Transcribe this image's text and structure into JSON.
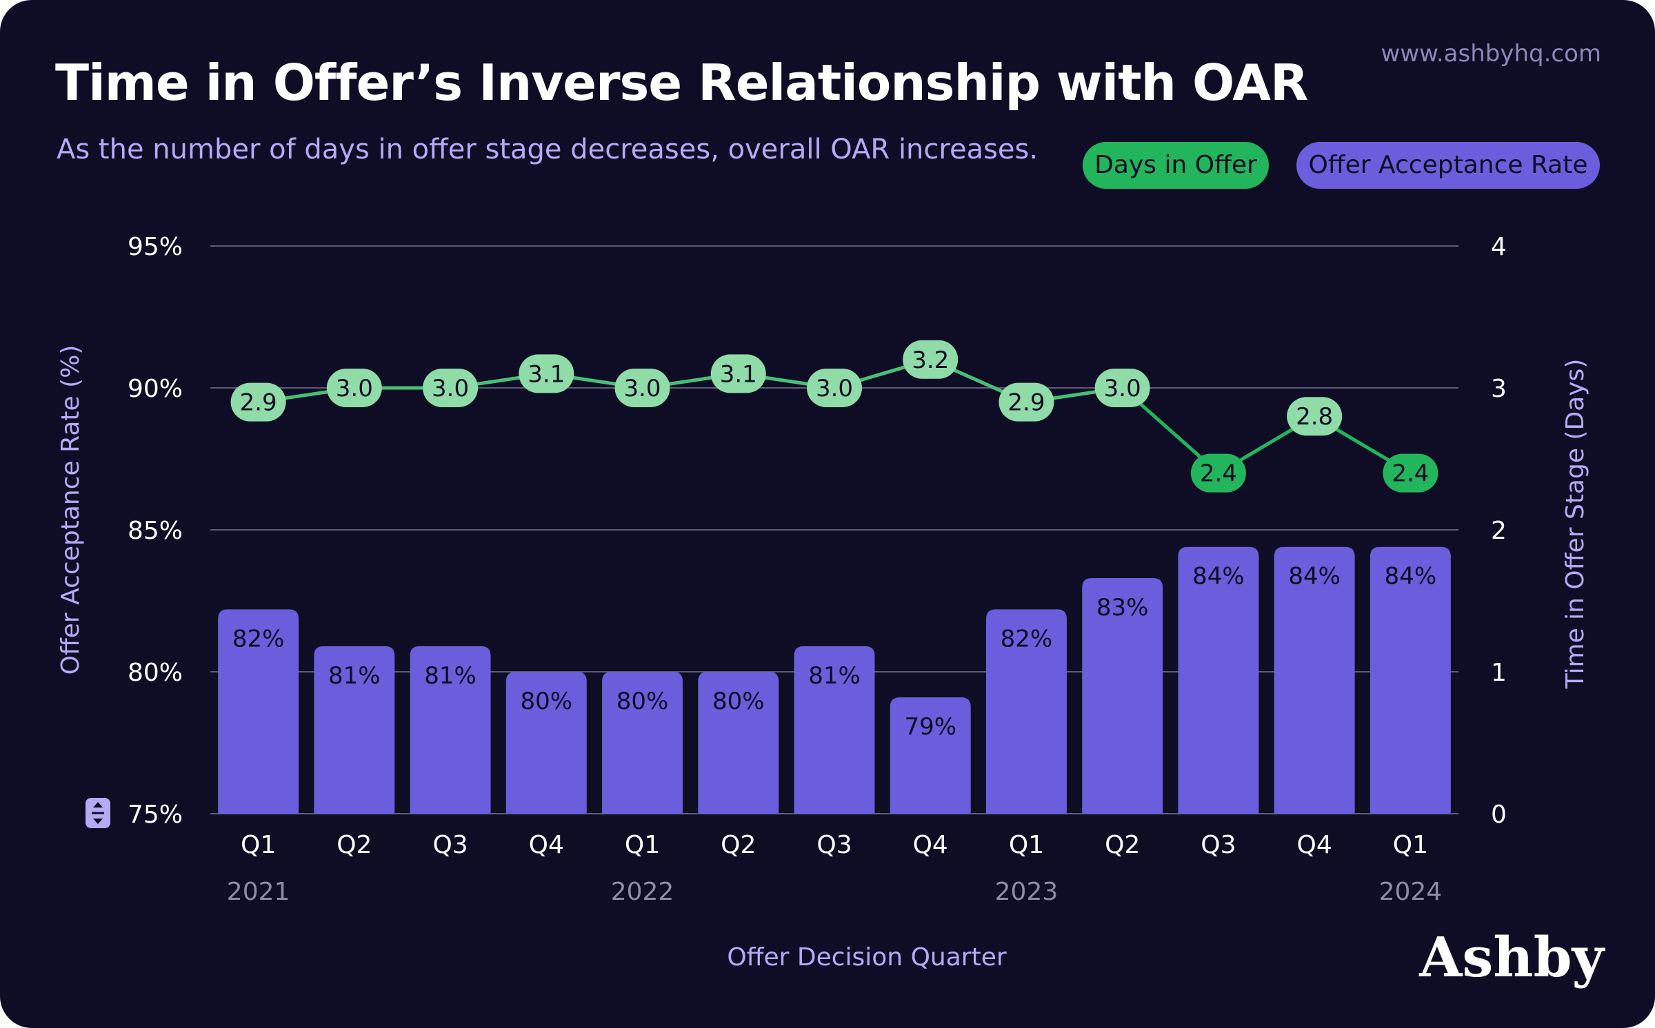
{
  "site": "www.ashbyhq.com",
  "brand": "Ashby",
  "legend": {
    "days_label": "Days in Offer",
    "oar_label": "Offer Acceptance Rate"
  },
  "colors": {
    "background": "#0f0d26",
    "bar": "#6b5ddb",
    "line": "#46c177",
    "point_light": "#8fdca8",
    "point_dark": "#22b55c",
    "axis_text": "#ffffff",
    "axis_title": "#b7a9f7",
    "year_text": "#8c8ca4",
    "grid": "#5c5a78"
  },
  "icons": {
    "expand": "expand-vertical-icon"
  },
  "chart_data": {
    "type": "bar",
    "title": "Time in Offer’s Inverse Relationship with OAR",
    "subtitle": "As the number of days in offer stage decreases, overall OAR increases.",
    "xlabel": "Offer Decision Quarter",
    "ylabel": "Offer Acceptance Rate (%)",
    "ylabel_right": "Time in Offer Stage (Days)",
    "categories": [
      "Q1",
      "Q2",
      "Q3",
      "Q4",
      "Q1",
      "Q2",
      "Q3",
      "Q4",
      "Q1",
      "Q2",
      "Q3",
      "Q4",
      "Q1"
    ],
    "year_labels": [
      {
        "label": "2021",
        "category_index": 0
      },
      {
        "label": "2022",
        "category_index": 4
      },
      {
        "label": "2023",
        "category_index": 8
      },
      {
        "label": "2024",
        "category_index": 12
      }
    ],
    "ylim": [
      75,
      95
    ],
    "yticks": [
      75,
      80,
      85,
      90,
      95
    ],
    "ytick_labels": [
      "75%",
      "80%",
      "85%",
      "90%",
      "95%"
    ],
    "ylim_right": [
      0,
      4
    ],
    "yticks_right": [
      0,
      1,
      2,
      3,
      4
    ],
    "ytick_labels_right": [
      "0",
      "1",
      "2",
      "3",
      "4"
    ],
    "grid": true,
    "legend_position": "top-right",
    "series": [
      {
        "name": "Offer Acceptance Rate",
        "type": "bar",
        "axis": "left",
        "values": [
          82.2,
          80.9,
          80.9,
          80.0,
          80.0,
          80.0,
          80.9,
          79.1,
          82.2,
          83.3,
          84.4,
          84.4,
          84.4
        ],
        "labels": [
          "82%",
          "81%",
          "81%",
          "80%",
          "80%",
          "80%",
          "81%",
          "79%",
          "82%",
          "83%",
          "84%",
          "84%",
          "84%"
        ]
      },
      {
        "name": "Days in Offer",
        "type": "line",
        "axis": "right",
        "values": [
          2.9,
          3.0,
          3.0,
          3.1,
          3.0,
          3.1,
          3.0,
          3.2,
          2.9,
          3.0,
          2.4,
          2.8,
          2.4
        ],
        "labels": [
          "2.9",
          "3.0",
          "3.0",
          "3.1",
          "3.0",
          "3.1",
          "3.0",
          "3.2",
          "2.9",
          "3.0",
          "2.4",
          "2.8",
          "2.4"
        ]
      }
    ]
  }
}
